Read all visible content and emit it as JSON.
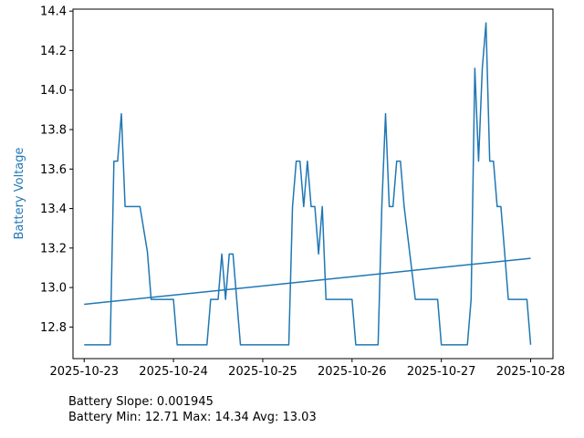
{
  "colors": {
    "series": "#1f77b4",
    "axis": "#000000",
    "background": "#ffffff"
  },
  "chart_data": {
    "type": "line",
    "ylabel": "Battery Voltage",
    "xlabel": "",
    "title": "",
    "grid": false,
    "legend": "none",
    "xlim": [
      "2025-10-22T21:00",
      "2025-10-28T06:00"
    ],
    "ylim": [
      12.64,
      14.41
    ],
    "x_ticks": [
      "2025-10-23",
      "2025-10-24",
      "2025-10-25",
      "2025-10-26",
      "2025-10-27",
      "2025-10-28"
    ],
    "y_ticks": [
      "12.8",
      "13.0",
      "13.2",
      "13.4",
      "13.6",
      "13.8",
      "14.0",
      "14.2",
      "14.4"
    ],
    "series": [
      {
        "points": [
          [
            "2025-10-23T00:00",
            12.71
          ],
          [
            "2025-10-23T07:00",
            12.71
          ],
          [
            "2025-10-23T08:00",
            13.64
          ],
          [
            "2025-10-23T09:00",
            13.64
          ],
          [
            "2025-10-23T10:00",
            13.88
          ],
          [
            "2025-10-23T11:00",
            13.41
          ],
          [
            "2025-10-23T15:00",
            13.41
          ],
          [
            "2025-10-23T17:00",
            13.18
          ],
          [
            "2025-10-23T18:00",
            12.94
          ],
          [
            "2025-10-24T00:00",
            12.94
          ],
          [
            "2025-10-24T01:00",
            12.71
          ],
          [
            "2025-10-24T09:00",
            12.71
          ],
          [
            "2025-10-24T10:00",
            12.94
          ],
          [
            "2025-10-24T12:00",
            12.94
          ],
          [
            "2025-10-24T13:00",
            13.17
          ],
          [
            "2025-10-24T14:00",
            12.94
          ],
          [
            "2025-10-24T15:00",
            13.17
          ],
          [
            "2025-10-24T16:00",
            13.17
          ],
          [
            "2025-10-24T17:00",
            12.94
          ],
          [
            "2025-10-24T18:00",
            12.71
          ],
          [
            "2025-10-25T07:00",
            12.71
          ],
          [
            "2025-10-25T08:00",
            13.41
          ],
          [
            "2025-10-25T09:00",
            13.64
          ],
          [
            "2025-10-25T10:00",
            13.64
          ],
          [
            "2025-10-25T11:00",
            13.41
          ],
          [
            "2025-10-25T12:00",
            13.64
          ],
          [
            "2025-10-25T13:00",
            13.41
          ],
          [
            "2025-10-25T14:00",
            13.41
          ],
          [
            "2025-10-25T15:00",
            13.17
          ],
          [
            "2025-10-25T16:00",
            13.41
          ],
          [
            "2025-10-25T17:00",
            12.94
          ],
          [
            "2025-10-26T00:00",
            12.94
          ],
          [
            "2025-10-26T01:00",
            12.71
          ],
          [
            "2025-10-26T07:00",
            12.71
          ],
          [
            "2025-10-26T08:00",
            13.41
          ],
          [
            "2025-10-26T09:00",
            13.88
          ],
          [
            "2025-10-26T10:00",
            13.41
          ],
          [
            "2025-10-26T11:00",
            13.41
          ],
          [
            "2025-10-26T12:00",
            13.64
          ],
          [
            "2025-10-26T13:00",
            13.64
          ],
          [
            "2025-10-26T14:00",
            13.41
          ],
          [
            "2025-10-26T17:00",
            12.94
          ],
          [
            "2025-10-26T23:00",
            12.94
          ],
          [
            "2025-10-27T00:00",
            12.71
          ],
          [
            "2025-10-27T07:00",
            12.71
          ],
          [
            "2025-10-27T08:00",
            12.94
          ],
          [
            "2025-10-27T09:00",
            14.11
          ],
          [
            "2025-10-27T10:00",
            13.64
          ],
          [
            "2025-10-27T11:00",
            14.11
          ],
          [
            "2025-10-27T12:00",
            14.34
          ],
          [
            "2025-10-27T13:00",
            13.64
          ],
          [
            "2025-10-27T14:00",
            13.64
          ],
          [
            "2025-10-27T15:00",
            13.41
          ],
          [
            "2025-10-27T16:00",
            13.41
          ],
          [
            "2025-10-27T17:00",
            13.18
          ],
          [
            "2025-10-27T18:00",
            12.94
          ],
          [
            "2025-10-27T22:00",
            12.94
          ],
          [
            "2025-10-27T23:00",
            12.94
          ],
          [
            "2025-10-28T00:00",
            12.71
          ]
        ]
      },
      {
        "points": [
          [
            "2025-10-23T00:00",
            12.915
          ],
          [
            "2025-10-28T00:00",
            13.148
          ]
        ]
      }
    ]
  },
  "stats": {
    "slope": "Battery Slope: 0.001945",
    "summary": "Battery Min: 12.71 Max: 14.34 Avg: 13.03"
  }
}
